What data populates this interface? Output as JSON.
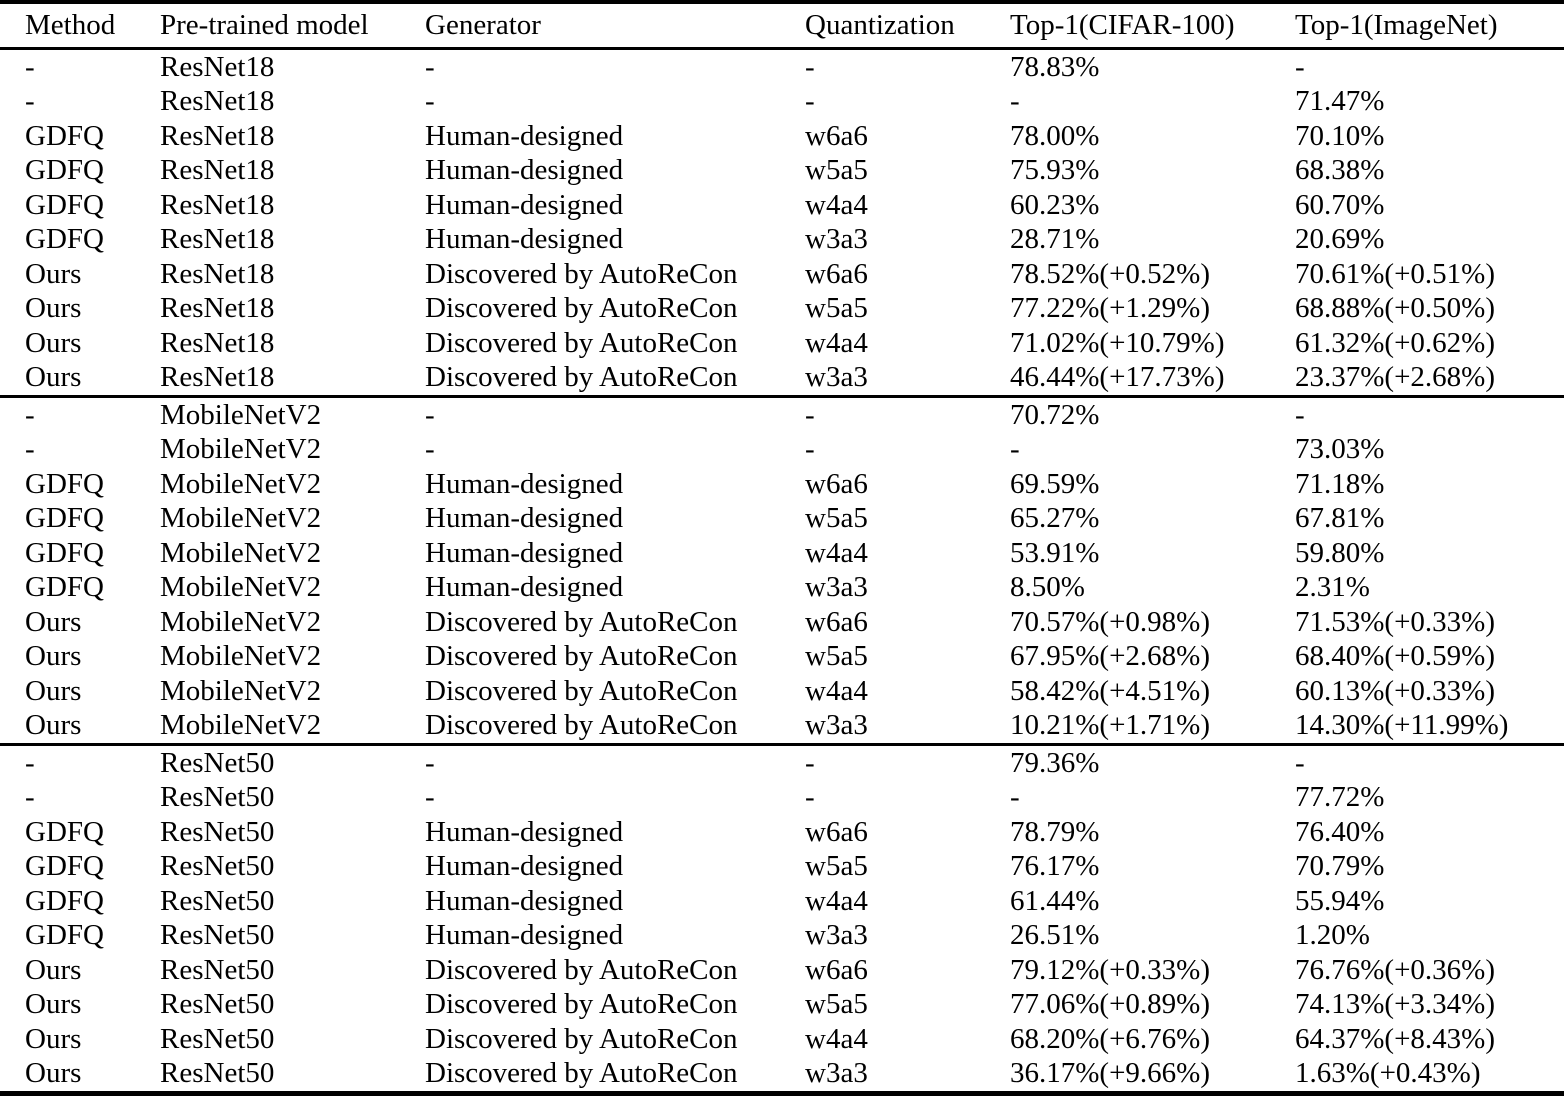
{
  "page": {
    "background_color": "#ffffff",
    "text_color": "#000000",
    "rule_color": "#000000"
  },
  "chart_data": {
    "type": "table",
    "columns": [
      "Method",
      "Pre-trained model",
      "Generator",
      "Quantization",
      "Top-1(CIFAR-100)",
      "Top-1(ImageNet)"
    ],
    "sections": [
      {
        "rows": [
          [
            "-",
            "ResNet18",
            "-",
            "-",
            "78.83%",
            "-"
          ],
          [
            "-",
            "ResNet18",
            "-",
            "-",
            "-",
            "71.47%"
          ],
          [
            "GDFQ",
            "ResNet18",
            "Human-designed",
            "w6a6",
            "78.00%",
            "70.10%"
          ],
          [
            "GDFQ",
            "ResNet18",
            "Human-designed",
            "w5a5",
            "75.93%",
            "68.38%"
          ],
          [
            "GDFQ",
            "ResNet18",
            "Human-designed",
            "w4a4",
            "60.23%",
            "60.70%"
          ],
          [
            "GDFQ",
            "ResNet18",
            "Human-designed",
            "w3a3",
            "28.71%",
            "20.69%"
          ],
          [
            "Ours",
            "ResNet18",
            "Discovered by AutoReCon",
            "w6a6",
            "78.52%(+0.52%)",
            "70.61%(+0.51%)"
          ],
          [
            "Ours",
            "ResNet18",
            "Discovered by AutoReCon",
            "w5a5",
            "77.22%(+1.29%)",
            "68.88%(+0.50%)"
          ],
          [
            "Ours",
            "ResNet18",
            "Discovered by AutoReCon",
            "w4a4",
            "71.02%(+10.79%)",
            "61.32%(+0.62%)"
          ],
          [
            "Ours",
            "ResNet18",
            "Discovered by AutoReCon",
            "w3a3",
            "46.44%(+17.73%)",
            "23.37%(+2.68%)"
          ]
        ]
      },
      {
        "rows": [
          [
            "-",
            "MobileNetV2",
            "-",
            "-",
            "70.72%",
            "-"
          ],
          [
            "-",
            "MobileNetV2",
            "-",
            "-",
            "-",
            "73.03%"
          ],
          [
            "GDFQ",
            "MobileNetV2",
            "Human-designed",
            "w6a6",
            "69.59%",
            "71.18%"
          ],
          [
            "GDFQ",
            "MobileNetV2",
            "Human-designed",
            "w5a5",
            "65.27%",
            "67.81%"
          ],
          [
            "GDFQ",
            "MobileNetV2",
            "Human-designed",
            "w4a4",
            "53.91%",
            "59.80%"
          ],
          [
            "GDFQ",
            "MobileNetV2",
            "Human-designed",
            "w3a3",
            "8.50%",
            "2.31%"
          ],
          [
            "Ours",
            "MobileNetV2",
            "Discovered by AutoReCon",
            "w6a6",
            "70.57%(+0.98%)",
            "71.53%(+0.33%)"
          ],
          [
            "Ours",
            "MobileNetV2",
            "Discovered by AutoReCon",
            "w5a5",
            "67.95%(+2.68%)",
            "68.40%(+0.59%)"
          ],
          [
            "Ours",
            "MobileNetV2",
            "Discovered by AutoReCon",
            "w4a4",
            "58.42%(+4.51%)",
            "60.13%(+0.33%)"
          ],
          [
            "Ours",
            "MobileNetV2",
            "Discovered by AutoReCon",
            "w3a3",
            "10.21%(+1.71%)",
            "14.30%(+11.99%)"
          ]
        ]
      },
      {
        "rows": [
          [
            "-",
            "ResNet50",
            "-",
            "-",
            "79.36%",
            "-"
          ],
          [
            "-",
            "ResNet50",
            "-",
            "-",
            "-",
            "77.72%"
          ],
          [
            "GDFQ",
            "ResNet50",
            "Human-designed",
            "w6a6",
            "78.79%",
            "76.40%"
          ],
          [
            "GDFQ",
            "ResNet50",
            "Human-designed",
            "w5a5",
            "76.17%",
            "70.79%"
          ],
          [
            "GDFQ",
            "ResNet50",
            "Human-designed",
            "w4a4",
            "61.44%",
            "55.94%"
          ],
          [
            "GDFQ",
            "ResNet50",
            "Human-designed",
            "w3a3",
            "26.51%",
            "1.20%"
          ],
          [
            "Ours",
            "ResNet50",
            "Discovered by AutoReCon",
            "w6a6",
            "79.12%(+0.33%)",
            "76.76%(+0.36%)"
          ],
          [
            "Ours",
            "ResNet50",
            "Discovered by AutoReCon",
            "w5a5",
            "77.06%(+0.89%)",
            "74.13%(+3.34%)"
          ],
          [
            "Ours",
            "ResNet50",
            "Discovered by AutoReCon",
            "w4a4",
            "68.20%(+6.76%)",
            "64.37%(+8.43%)"
          ],
          [
            "Ours",
            "ResNet50",
            "Discovered by AutoReCon",
            "w3a3",
            "36.17%(+9.66%)",
            "1.63%(+0.43%)"
          ]
        ]
      }
    ]
  }
}
